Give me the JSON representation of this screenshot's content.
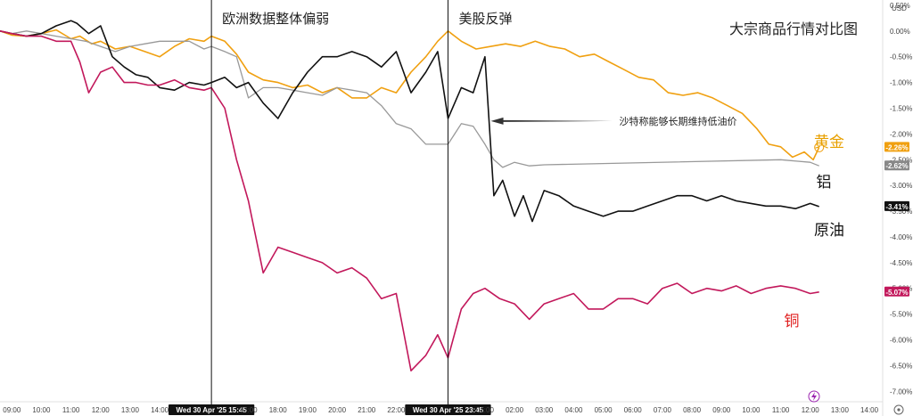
{
  "chart_data": {
    "type": "line",
    "title": "大宗商品行情对比图",
    "currency": "USD",
    "ylim": [
      -7.15,
      0.55
    ],
    "y_ticks": [
      "0.50%",
      "0.00%",
      "-0.50%",
      "-1.00%",
      "-1.50%",
      "-2.00%",
      "-2.50%",
      "-3.00%",
      "-3.50%",
      "-4.00%",
      "-4.50%",
      "-5.00%",
      "-5.50%",
      "-6.00%",
      "-6.50%",
      "-7.00%"
    ],
    "x_ticks": [
      "09:00",
      "10:00",
      "11:00",
      "12:00",
      "13:00",
      "14:00",
      "Wed 30 Apr '25  15:45",
      "17:00",
      "18:00",
      "19:00",
      "20:00",
      "21:00",
      "22:00",
      "Wed 30 Apr '25  23:45",
      "01:00",
      "02:00",
      "03:00",
      "04:00",
      "05:00",
      "06:00",
      "07:00",
      "08:00",
      "09:00",
      "10:00",
      "11:00",
      "12:00",
      "13:00",
      "14:00"
    ],
    "x_tick_values": [
      9,
      10,
      11,
      12,
      13,
      14,
      15.75,
      17,
      18,
      19,
      20,
      21,
      22,
      23.75,
      25,
      26,
      27,
      28,
      29,
      30,
      31,
      32,
      33,
      34,
      35,
      36,
      37,
      38
    ],
    "x_unit": "hours from 00:00 on 30 Apr 2025",
    "xlim": [
      8.6,
      38.45
    ],
    "vlines": [
      {
        "x": 15.75,
        "label": "欧洲数据整体偏弱"
      },
      {
        "x": 23.75,
        "label": "美股反弹"
      }
    ],
    "annotation": {
      "text": "沙特称能够长期维持低油价",
      "x": 25.2,
      "y": -1.75,
      "tail_x": 29.3
    },
    "series": [
      {
        "name": "黄金",
        "color": "#f0a010",
        "last": "-2.26%",
        "label_color": "#e8a000",
        "x": [
          8.6,
          9.0,
          9.5,
          10.0,
          10.5,
          11.0,
          11.3,
          11.7,
          12.0,
          12.5,
          13.0,
          13.5,
          14.0,
          14.5,
          15.0,
          15.5,
          15.75,
          16.2,
          16.6,
          17.0,
          17.5,
          18.0,
          18.5,
          19.0,
          19.5,
          20.0,
          20.5,
          21.0,
          21.5,
          22.0,
          22.5,
          23.0,
          23.4,
          23.75,
          24.2,
          24.7,
          25.2,
          25.7,
          26.2,
          26.7,
          27.2,
          27.7,
          28.2,
          28.7,
          29.2,
          29.7,
          30.2,
          30.7,
          31.2,
          31.7,
          32.2,
          32.7,
          33.2,
          33.7,
          34.2,
          34.6,
          35.0,
          35.4,
          35.8,
          36.1,
          36.3
        ],
        "y": [
          0.0,
          -0.08,
          -0.1,
          -0.05,
          0.02,
          -0.15,
          -0.1,
          -0.25,
          -0.2,
          -0.35,
          -0.3,
          -0.4,
          -0.5,
          -0.3,
          -0.15,
          -0.2,
          -0.1,
          -0.2,
          -0.45,
          -0.8,
          -0.95,
          -1.0,
          -1.1,
          -1.05,
          -1.2,
          -1.1,
          -1.3,
          -1.3,
          -1.1,
          -1.2,
          -0.8,
          -0.5,
          -0.2,
          0.0,
          -0.2,
          -0.35,
          -0.3,
          -0.25,
          -0.3,
          -0.2,
          -0.3,
          -0.35,
          -0.5,
          -0.45,
          -0.6,
          -0.75,
          -0.9,
          -0.95,
          -1.2,
          -1.25,
          -1.2,
          -1.3,
          -1.45,
          -1.6,
          -1.9,
          -2.2,
          -2.25,
          -2.45,
          -2.35,
          -2.5,
          -2.26
        ]
      },
      {
        "name": "铝",
        "color": "#999999",
        "last": "-2.62%",
        "label_color": "#111111",
        "x": [
          8.6,
          9.0,
          9.5,
          10.0,
          10.5,
          11.0,
          11.5,
          12.0,
          12.5,
          13.0,
          13.5,
          14.0,
          14.5,
          15.0,
          15.5,
          15.75,
          16.2,
          16.6,
          17.0,
          17.5,
          18.0,
          18.5,
          19.0,
          19.5,
          20.0,
          20.5,
          21.0,
          21.5,
          22.0,
          22.5,
          23.0,
          23.4,
          23.75,
          24.2,
          24.6,
          25.0,
          25.3,
          25.6,
          26.0,
          26.5,
          27.0,
          35.0,
          36.0,
          36.3
        ],
        "y": [
          0.0,
          -0.05,
          0.0,
          -0.05,
          -0.1,
          -0.15,
          -0.2,
          -0.3,
          -0.4,
          -0.3,
          -0.25,
          -0.2,
          -0.2,
          -0.2,
          -0.35,
          -0.3,
          -0.4,
          -0.5,
          -1.3,
          -1.1,
          -1.1,
          -1.15,
          -1.2,
          -1.25,
          -1.1,
          -1.15,
          -1.2,
          -1.45,
          -1.8,
          -1.9,
          -2.2,
          -2.2,
          -2.2,
          -1.8,
          -1.85,
          -2.2,
          -2.5,
          -2.65,
          -2.55,
          -2.62,
          -2.6,
          -2.5,
          -2.55,
          -2.62
        ]
      },
      {
        "name": "原油",
        "color": "#111111",
        "last": "-3.41%",
        "label_color": "#111111",
        "x": [
          8.6,
          9.0,
          9.5,
          10.0,
          10.5,
          11.0,
          11.2,
          11.6,
          12.0,
          12.4,
          12.8,
          13.2,
          13.6,
          14.0,
          14.5,
          15.0,
          15.5,
          15.75,
          16.2,
          16.6,
          17.0,
          17.5,
          18.0,
          18.5,
          19.0,
          19.5,
          20.0,
          20.5,
          21.0,
          21.5,
          22.0,
          22.5,
          23.0,
          23.4,
          23.75,
          24.2,
          24.6,
          25.0,
          25.3,
          25.6,
          26.0,
          26.3,
          26.6,
          27.0,
          27.5,
          28.0,
          28.5,
          29.0,
          29.5,
          30.0,
          30.5,
          31.0,
          31.5,
          32.0,
          32.5,
          33.0,
          33.5,
          34.0,
          34.5,
          35.0,
          35.5,
          36.0,
          36.3
        ],
        "y": [
          0.0,
          -0.05,
          -0.1,
          -0.05,
          0.1,
          0.2,
          0.15,
          -0.05,
          0.1,
          -0.5,
          -0.7,
          -0.85,
          -0.9,
          -1.1,
          -1.15,
          -1.0,
          -1.05,
          -1.0,
          -0.9,
          -1.1,
          -1.0,
          -1.4,
          -1.7,
          -1.2,
          -0.8,
          -0.5,
          -0.5,
          -0.4,
          -0.5,
          -0.7,
          -0.4,
          -1.2,
          -0.8,
          -0.4,
          -1.7,
          -1.1,
          -1.2,
          -0.5,
          -3.2,
          -2.9,
          -3.6,
          -3.2,
          -3.7,
          -3.1,
          -3.2,
          -3.4,
          -3.5,
          -3.6,
          -3.5,
          -3.5,
          -3.4,
          -3.3,
          -3.2,
          -3.2,
          -3.3,
          -3.2,
          -3.3,
          -3.35,
          -3.4,
          -3.4,
          -3.45,
          -3.35,
          -3.41
        ]
      },
      {
        "name": "铜",
        "color": "#c2185b",
        "last": "-5.07%",
        "label_color": "#e02020",
        "x": [
          8.6,
          9.0,
          9.5,
          10.0,
          10.5,
          11.0,
          11.3,
          11.6,
          12.0,
          12.4,
          12.8,
          13.2,
          13.6,
          14.0,
          14.5,
          15.0,
          15.5,
          15.75,
          16.2,
          16.6,
          17.0,
          17.5,
          18.0,
          18.5,
          19.0,
          19.5,
          20.0,
          20.5,
          21.0,
          21.5,
          22.0,
          22.5,
          23.0,
          23.4,
          23.75,
          24.2,
          24.6,
          25.0,
          25.5,
          26.0,
          26.5,
          27.0,
          27.5,
          28.0,
          28.5,
          29.0,
          29.5,
          30.0,
          30.5,
          31.0,
          31.5,
          32.0,
          32.5,
          33.0,
          33.5,
          34.0,
          34.5,
          35.0,
          35.5,
          36.0,
          36.3
        ],
        "y": [
          0.0,
          -0.05,
          -0.1,
          -0.1,
          -0.2,
          -0.2,
          -0.6,
          -1.2,
          -0.8,
          -0.7,
          -1.0,
          -1.0,
          -1.05,
          -1.05,
          -0.95,
          -1.1,
          -1.15,
          -1.1,
          -1.5,
          -2.5,
          -3.3,
          -4.7,
          -4.2,
          -4.3,
          -4.4,
          -4.5,
          -4.7,
          -4.6,
          -4.8,
          -5.2,
          -5.1,
          -6.6,
          -6.3,
          -5.9,
          -6.35,
          -5.4,
          -5.1,
          -5.0,
          -5.2,
          -5.3,
          -5.6,
          -5.3,
          -5.2,
          -5.1,
          -5.4,
          -5.4,
          -5.2,
          -5.2,
          -5.3,
          -5.0,
          -4.9,
          -5.1,
          -5.0,
          -5.05,
          -4.95,
          -5.1,
          -5.0,
          -4.95,
          -5.0,
          -5.1,
          -5.07
        ]
      }
    ]
  }
}
